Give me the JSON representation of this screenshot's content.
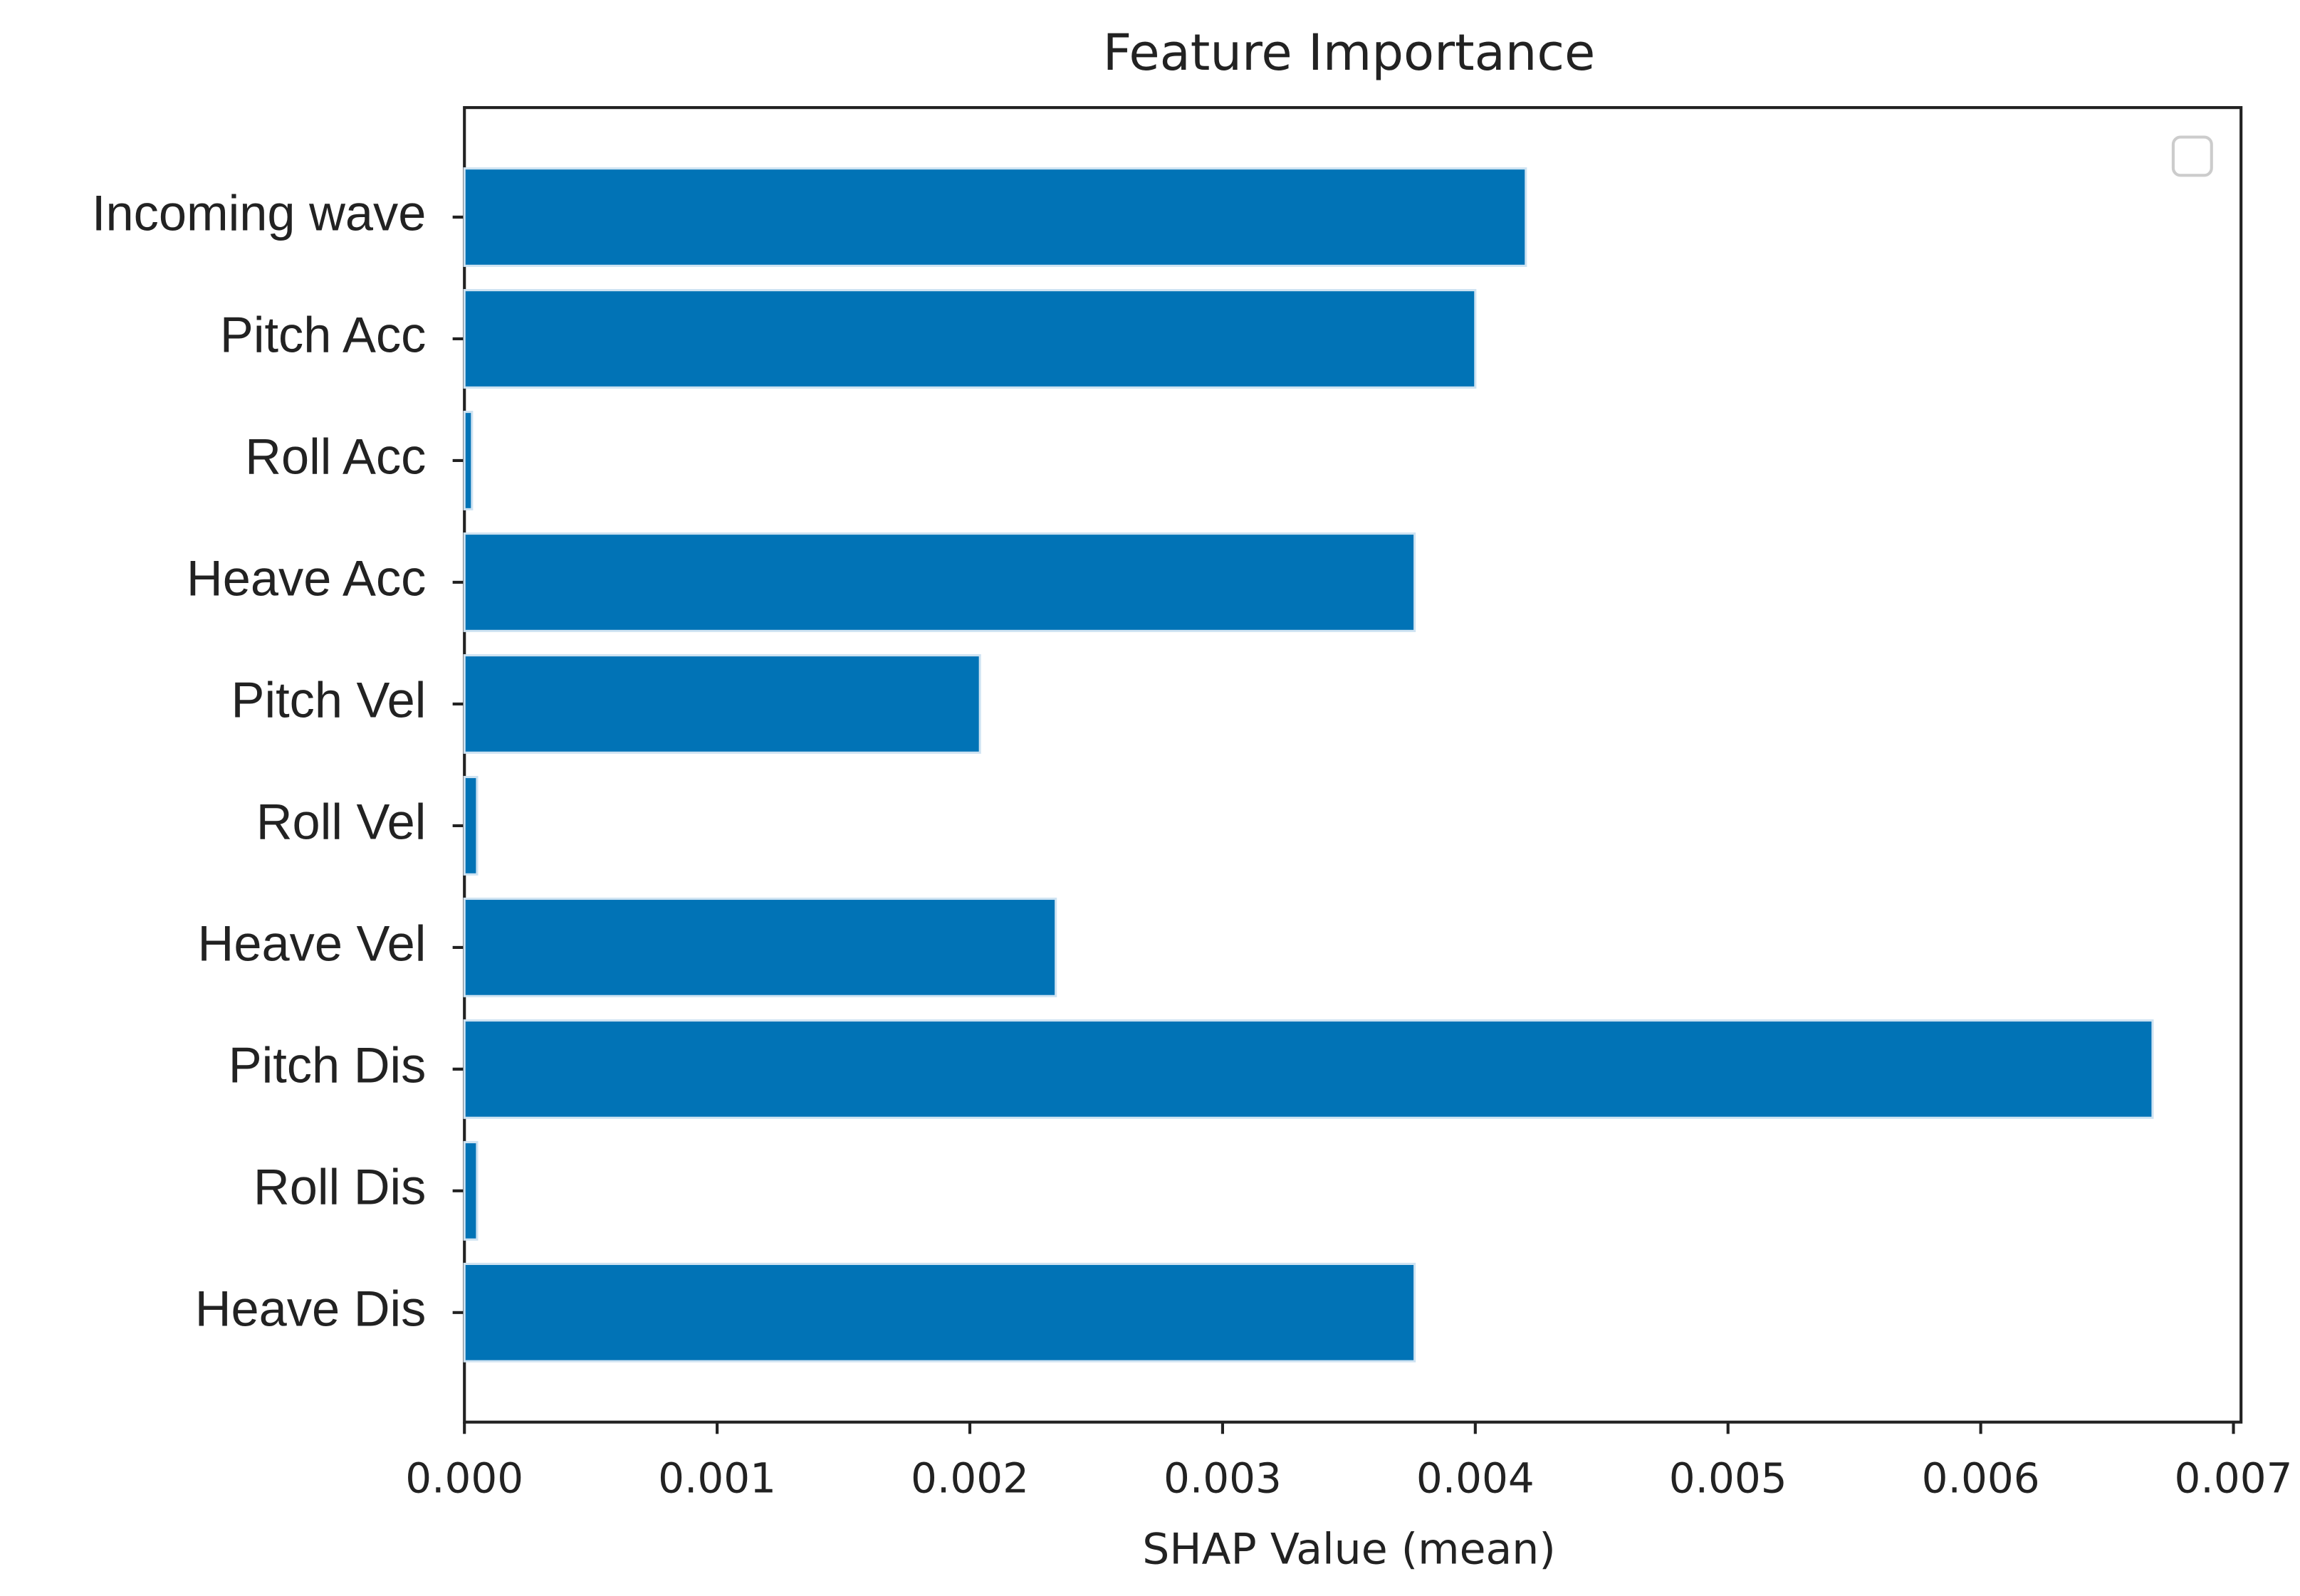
{
  "chart_data": {
    "type": "barh",
    "title": "Feature Importance",
    "x_label": "SHAP Value (mean)",
    "categories": [
      "Incoming wave",
      "Pitch Acc",
      "Roll Acc",
      "Heave Acc",
      "Pitch Vel",
      "Roll Vel",
      "Heave Vel",
      "Pitch Dis",
      "Roll Dis",
      "Heave Dis"
    ],
    "values": [
      0.0042,
      0.004,
      3e-05,
      0.00376,
      0.00204,
      5e-05,
      0.00234,
      0.00668,
      5e-05,
      0.00376
    ],
    "color": "#0173b6",
    "xlim": [
      0,
      0.00703
    ],
    "xticks": [
      {
        "value": 0,
        "label": "0.000"
      },
      0.001,
      0.002,
      0.003,
      0.004,
      0.005,
      0.006,
      0.007
    ],
    "grid": false,
    "legend": "upper right"
  }
}
